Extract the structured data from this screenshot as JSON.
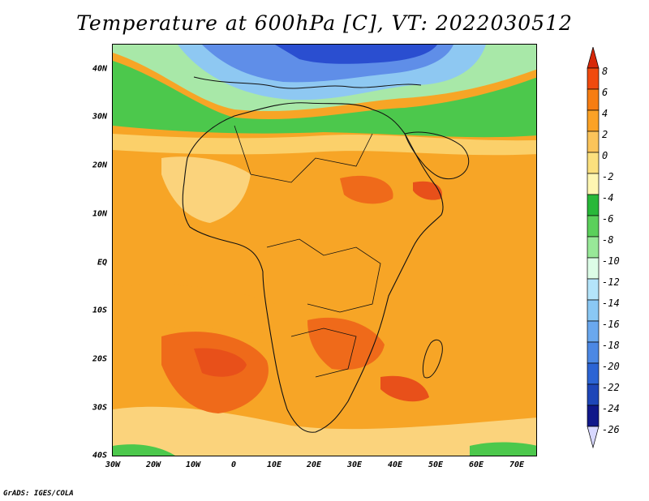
{
  "title": "Temperature at 600hPa [C], VT: 2022030512",
  "credit": "GrADS: IGES/COLA",
  "axes": {
    "y_labels": [
      "40N",
      "30N",
      "20N",
      "10N",
      "EQ",
      "10S",
      "20S",
      "30S",
      "40S"
    ],
    "x_labels": [
      "30W",
      "20W",
      "10W",
      "0",
      "10E",
      "20E",
      "30E",
      "40E",
      "50E",
      "60E",
      "70E"
    ]
  },
  "colorbar": {
    "labels": [
      "8",
      "6",
      "4",
      "2",
      "0",
      "-2",
      "-4",
      "-6",
      "-8",
      "-10",
      "-12",
      "-14",
      "-16",
      "-18",
      "-20",
      "-22",
      "-24",
      "-26"
    ],
    "colors": [
      "#d72808",
      "#f04a0e",
      "#f77d12",
      "#fba226",
      "#fbc45a",
      "#fbe07e",
      "#fef6b2",
      "#28b839",
      "#5bd05b",
      "#98e898",
      "#dcfce6",
      "#b4e4fa",
      "#8ac8f4",
      "#6aa8ee",
      "#4c88e4",
      "#2c64d4",
      "#1e46b8",
      "#10188a",
      "#d8d8ff"
    ]
  },
  "colors": {
    "warm_dark": "#e8501a",
    "warm_mid": "#f59a1c",
    "warm_light": "#fbd27a",
    "cool_green": "#4cc84c",
    "cool_light": "#a8e8a8",
    "cool_blue": "#5f8ee8",
    "cool_dark": "#2a4ed0"
  }
}
